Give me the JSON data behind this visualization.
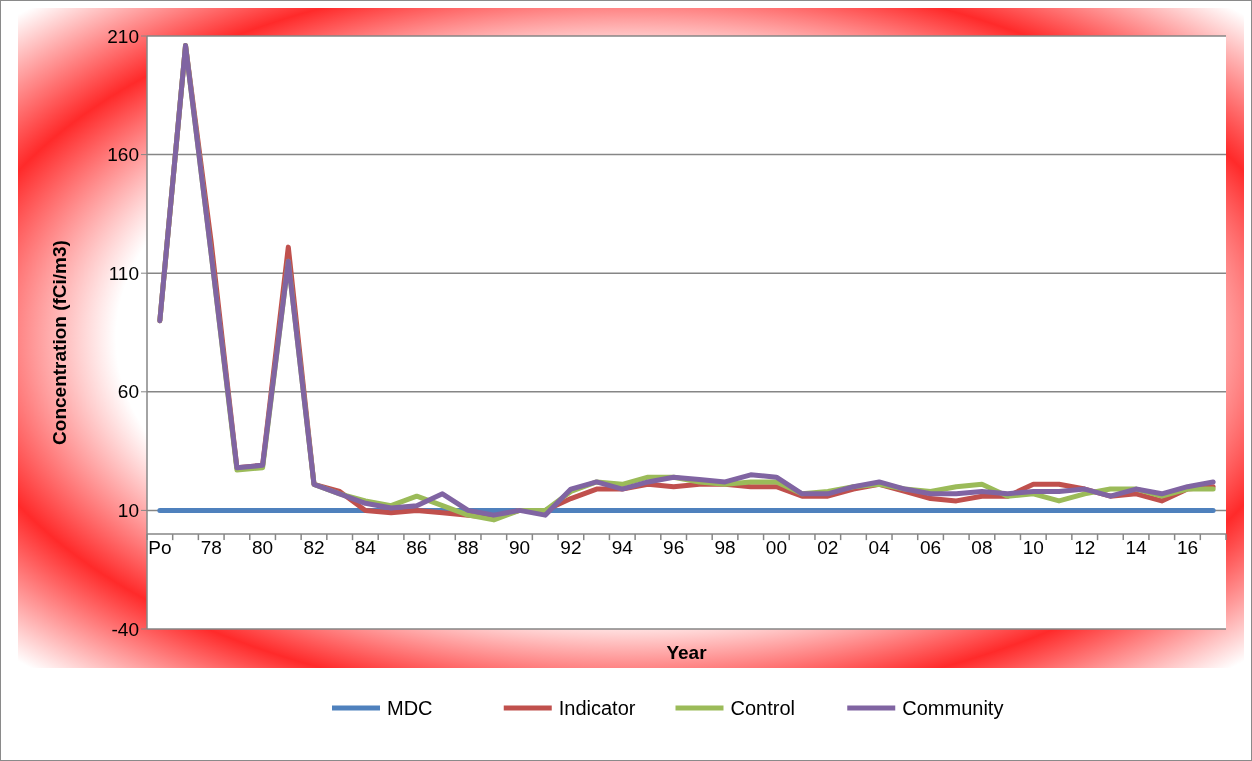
{
  "chart_data": {
    "type": "line",
    "xlabel": "Year",
    "ylabel": "Concentration (fCi/m3)",
    "categories": [
      "Po",
      null,
      "78",
      null,
      "80",
      null,
      "82",
      null,
      "84",
      null,
      "86",
      null,
      "88",
      null,
      "90",
      null,
      "92",
      null,
      "94",
      null,
      "96",
      null,
      "98",
      null,
      "00",
      null,
      "02",
      null,
      "04",
      null,
      "06",
      null,
      "08",
      null,
      "10",
      null,
      "12",
      null,
      "14",
      null,
      "16",
      null
    ],
    "series": [
      {
        "name": "MDC",
        "color": "#4f81bd",
        "values": [
          10,
          10,
          10,
          10,
          10,
          10,
          10,
          10,
          10,
          10,
          10,
          10,
          10,
          10,
          10,
          10,
          10,
          10,
          10,
          10,
          10,
          10,
          10,
          10,
          10,
          10,
          10,
          10,
          10,
          10,
          10,
          10,
          10,
          10,
          10,
          10,
          10,
          10,
          10,
          10,
          10,
          10
        ]
      },
      {
        "name": "Indicator",
        "color": "#c0504d",
        "values": [
          90,
          206,
          123,
          28,
          29,
          121,
          21,
          18,
          10,
          9,
          10,
          9,
          8,
          7,
          10,
          10,
          15,
          19,
          19,
          21,
          20,
          21,
          21,
          20,
          20,
          16,
          16,
          19,
          21,
          18,
          15,
          14,
          16,
          16,
          21,
          21,
          19,
          16,
          17,
          14,
          19,
          20
        ]
      },
      {
        "name": "Control",
        "color": "#9bbb59",
        "values": [
          90,
          206,
          118,
          27,
          28,
          115,
          21,
          17,
          14,
          12,
          16,
          12,
          8,
          6,
          10,
          10,
          18,
          22,
          21,
          24,
          24,
          22,
          21,
          22,
          22,
          17,
          18,
          20,
          21,
          19,
          18,
          20,
          21,
          16,
          17,
          14,
          17,
          19,
          19,
          16,
          19,
          19
        ]
      },
      {
        "name": "Community",
        "color": "#8064a2",
        "values": [
          90,
          206,
          118,
          28,
          29,
          115,
          21,
          17,
          13,
          11,
          12,
          17,
          10,
          8,
          10,
          8,
          19,
          22,
          19,
          22,
          24,
          23,
          22,
          25,
          24,
          17,
          17,
          20,
          22,
          19,
          17,
          17,
          18,
          17,
          18,
          18,
          19,
          16,
          19,
          17,
          20,
          22
        ]
      }
    ],
    "ylim": [
      -40,
      210
    ],
    "yticks": [
      -40,
      10,
      60,
      110,
      160,
      210
    ],
    "grid": "y",
    "legend": "bottom",
    "marker": "none",
    "line_style": "solid"
  }
}
